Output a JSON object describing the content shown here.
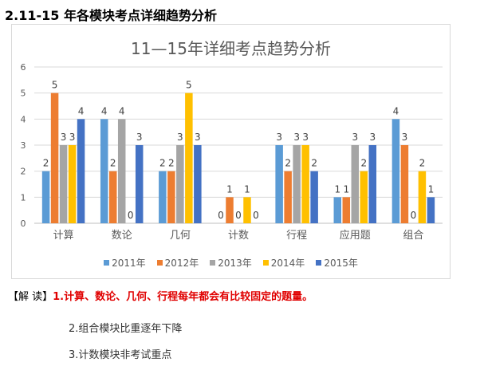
{
  "page_heading": "2.11-15 年各模块考点详细趋势分析",
  "chart_data": {
    "type": "bar",
    "title": "11—15年详细考点趋势分析",
    "categories": [
      "计算",
      "数论",
      "几何",
      "计数",
      "行程",
      "应用题",
      "组合"
    ],
    "series": [
      {
        "name": "2011年",
        "color": "#5b9bd5",
        "values": [
          2,
          4,
          2,
          0,
          3,
          1,
          4
        ]
      },
      {
        "name": "2012年",
        "color": "#ed7d31",
        "values": [
          5,
          2,
          2,
          1,
          2,
          1,
          3
        ]
      },
      {
        "name": "2013年",
        "color": "#a5a5a5",
        "values": [
          3,
          4,
          3,
          0,
          3,
          3,
          0
        ]
      },
      {
        "name": "2014年",
        "color": "#ffc000",
        "values": [
          3,
          0,
          5,
          1,
          3,
          2,
          2
        ]
      },
      {
        "name": "2015年",
        "color": "#4472c4",
        "values": [
          4,
          3,
          3,
          0,
          2,
          3,
          1
        ]
      }
    ],
    "ylim": [
      0,
      6
    ],
    "yticks": [
      "0",
      "1",
      "2",
      "3",
      "4",
      "5",
      "6"
    ],
    "grid": true,
    "legend_position": "bottom"
  },
  "analysis": {
    "label": "【解  读】",
    "point1": "1.计算、数论、几何、行程每年都会有比较固定的题量。",
    "point2": "2.组合模块比重逐年下降",
    "point3": "3.计数模块非考试重点"
  }
}
